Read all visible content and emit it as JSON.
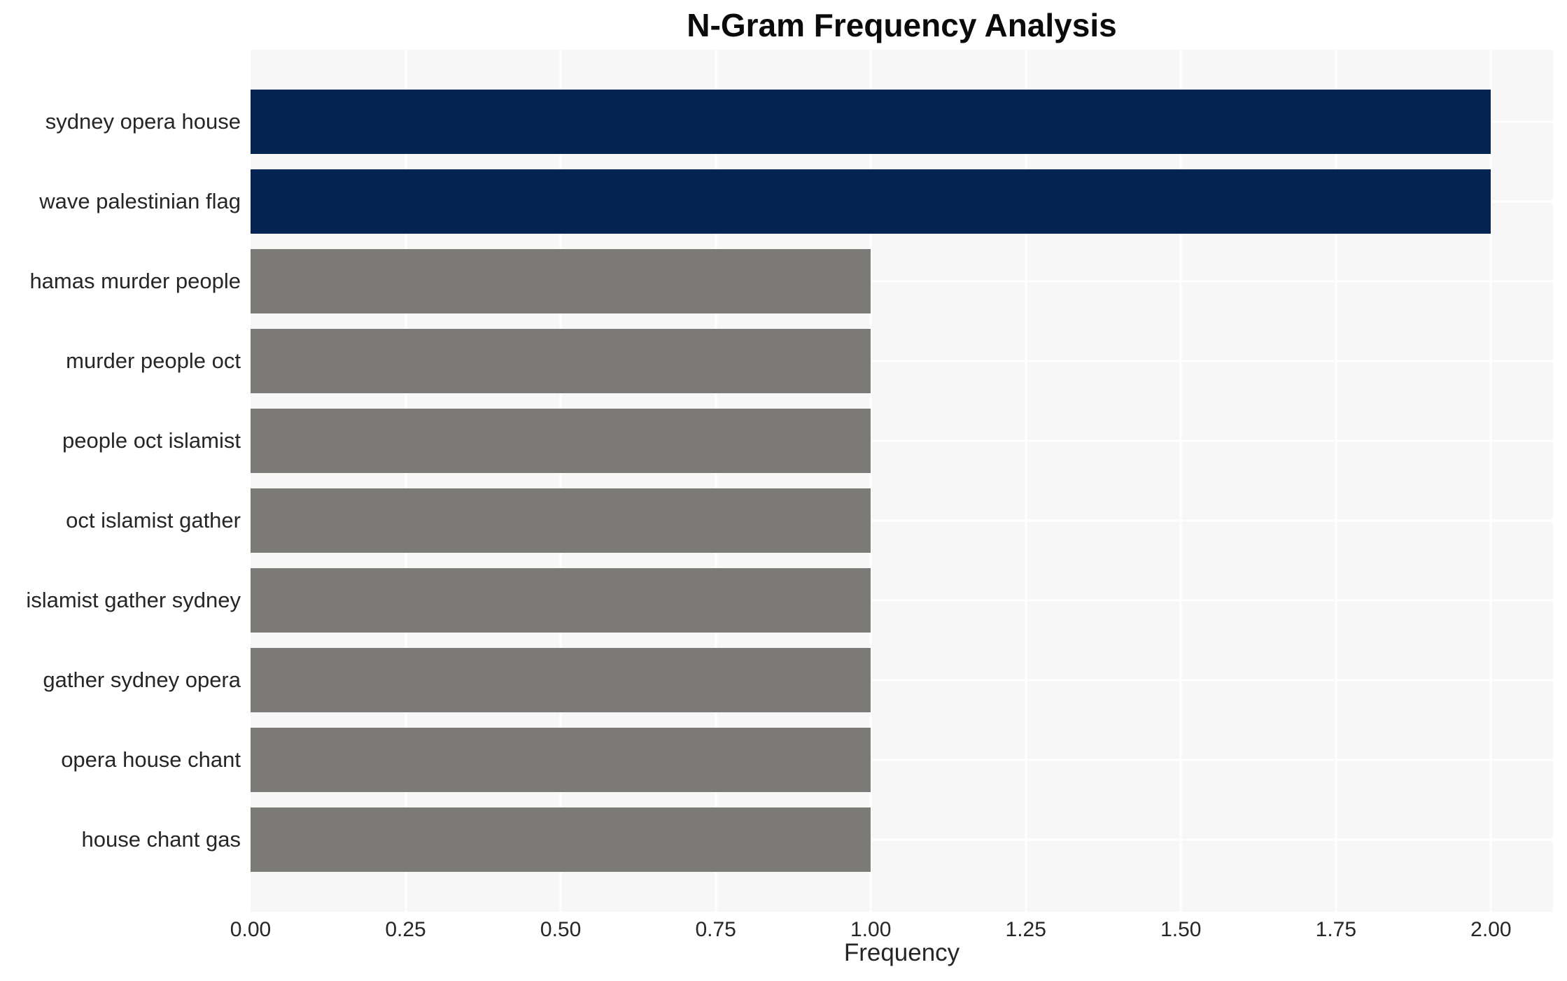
{
  "title": "N-Gram Frequency Analysis",
  "chart_data": {
    "type": "bar",
    "orientation": "horizontal",
    "title": "N-Gram Frequency Analysis",
    "xlabel": "Frequency",
    "ylabel": "",
    "categories": [
      "sydney opera house",
      "wave palestinian flag",
      "hamas murder people",
      "murder people oct",
      "people oct islamist",
      "oct islamist gather",
      "islamist gather sydney",
      "gather sydney opera",
      "opera house chant",
      "house chant gas"
    ],
    "values": [
      2,
      2,
      1,
      1,
      1,
      1,
      1,
      1,
      1,
      1
    ],
    "bar_colors": [
      "#032350",
      "#032350",
      "#7b7a76",
      "#7b7a76",
      "#7b7a76",
      "#7b7a76",
      "#7b7a76",
      "#7b7a76",
      "#7b7a76",
      "#7b7a76"
    ],
    "xlim": [
      0,
      2.1
    ],
    "xticks": [
      0,
      0.25,
      0.5,
      0.75,
      1,
      1.25,
      1.5,
      1.75,
      2
    ],
    "xtick_labels": [
      "0.00",
      "0.25",
      "0.50",
      "0.75",
      "1.00",
      "1.25",
      "1.50",
      "1.75",
      "2.00"
    ],
    "grid": "white vertical gridlines at each x tick and horizontal gridlines at each category center, on light gray panel",
    "legend": "none",
    "colors": {
      "highlight_bar": "#032350",
      "default_bar": "#7b7a76",
      "panel_background": "#f7f7f7",
      "gridline": "#ffffff",
      "text": "#262626",
      "title_text": "#0b0b0b"
    }
  }
}
